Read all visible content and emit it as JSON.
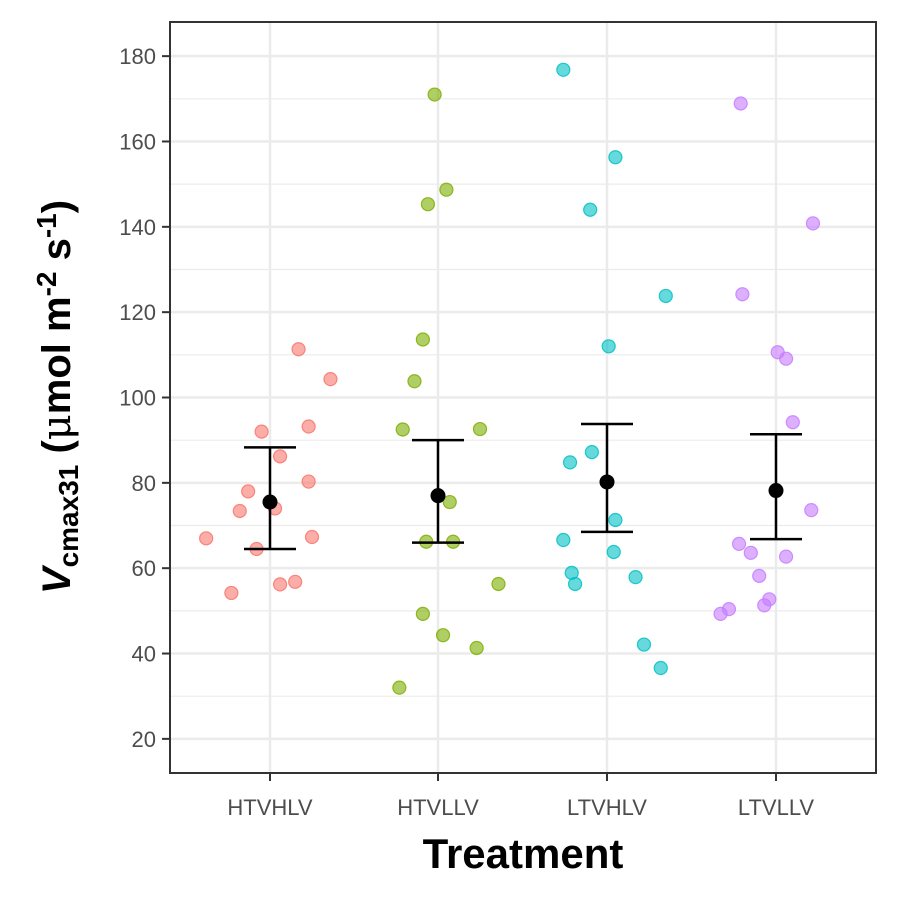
{
  "chart_data": {
    "type": "scatter",
    "xlabel": "Treatment",
    "ylabel": {
      "var": "V",
      "sub": "cmax31",
      "unit_open": " (",
      "unit_mu": "μ",
      "unit_mol": "mol m",
      "exp1": "-2",
      "unit_s": " s",
      "exp2": "-1",
      "unit_close": ")"
    },
    "categories": [
      "HTVHLV",
      "HTVLLV",
      "LTVHLV",
      "LTVLLV"
    ],
    "ylim": [
      12,
      188
    ],
    "yticks": [
      20,
      40,
      60,
      80,
      100,
      120,
      140,
      160,
      180
    ],
    "grid": true,
    "colors": {
      "HTVHLV": "#F8766D",
      "HTVLLV": "#7CAE00",
      "LTVHLV": "#00BFC4",
      "LTVLLV": "#C77CFF",
      "summary": "#000000"
    },
    "series": [
      {
        "category": "HTVHLV",
        "points": [
          {
            "x": -0.38,
            "y": 67
          },
          {
            "x": -0.23,
            "y": 54.2
          },
          {
            "x": -0.18,
            "y": 73.4
          },
          {
            "x": -0.13,
            "y": 78
          },
          {
            "x": -0.08,
            "y": 64.5
          },
          {
            "x": -0.05,
            "y": 92
          },
          {
            "x": 0.03,
            "y": 74
          },
          {
            "x": 0.06,
            "y": 86.2
          },
          {
            "x": 0.06,
            "y": 56.2
          },
          {
            "x": 0.15,
            "y": 56.8
          },
          {
            "x": 0.17,
            "y": 111.3
          },
          {
            "x": 0.23,
            "y": 93.2
          },
          {
            "x": 0.23,
            "y": 80.3
          },
          {
            "x": 0.25,
            "y": 67.3
          },
          {
            "x": 0.36,
            "y": 104.3
          }
        ],
        "mean": 75.5,
        "lower": 64.5,
        "upper": 88.3
      },
      {
        "category": "HTVLLV",
        "points": [
          {
            "x": -0.23,
            "y": 32
          },
          {
            "x": -0.21,
            "y": 92.5
          },
          {
            "x": -0.14,
            "y": 103.8
          },
          {
            "x": -0.09,
            "y": 113.6
          },
          {
            "x": -0.09,
            "y": 49.3
          },
          {
            "x": -0.07,
            "y": 66.2
          },
          {
            "x": -0.06,
            "y": 145.3
          },
          {
            "x": -0.02,
            "y": 171
          },
          {
            "x": 0.03,
            "y": 44.3
          },
          {
            "x": 0.05,
            "y": 148.7
          },
          {
            "x": 0.07,
            "y": 75.5
          },
          {
            "x": 0.09,
            "y": 66.2
          },
          {
            "x": 0.23,
            "y": 41.3
          },
          {
            "x": 0.25,
            "y": 92.6
          },
          {
            "x": 0.36,
            "y": 56.3
          }
        ],
        "mean": 77,
        "lower": 66,
        "upper": 90
      },
      {
        "category": "LTVHLV",
        "points": [
          {
            "x": -0.26,
            "y": 176.8
          },
          {
            "x": -0.26,
            "y": 66.6
          },
          {
            "x": -0.22,
            "y": 84.8
          },
          {
            "x": -0.21,
            "y": 58.9
          },
          {
            "x": -0.19,
            "y": 56.3
          },
          {
            "x": -0.1,
            "y": 144
          },
          {
            "x": -0.09,
            "y": 87.2
          },
          {
            "x": 0.01,
            "y": 112
          },
          {
            "x": 0.04,
            "y": 63.8
          },
          {
            "x": 0.05,
            "y": 71.3
          },
          {
            "x": 0.05,
            "y": 156.3
          },
          {
            "x": 0.17,
            "y": 57.9
          },
          {
            "x": 0.22,
            "y": 42.1
          },
          {
            "x": 0.32,
            "y": 36.6
          },
          {
            "x": 0.35,
            "y": 123.8
          }
        ],
        "mean": 80.2,
        "lower": 68.5,
        "upper": 93.8
      },
      {
        "category": "LTVLLV",
        "points": [
          {
            "x": -0.33,
            "y": 49.3
          },
          {
            "x": -0.28,
            "y": 50.4
          },
          {
            "x": -0.22,
            "y": 65.7
          },
          {
            "x": -0.15,
            "y": 63.6
          },
          {
            "x": -0.21,
            "y": 168.9
          },
          {
            "x": -0.2,
            "y": 124.2
          },
          {
            "x": -0.1,
            "y": 58.2
          },
          {
            "x": -0.07,
            "y": 51.3
          },
          {
            "x": -0.04,
            "y": 52.7
          },
          {
            "x": 0.01,
            "y": 110.6
          },
          {
            "x": 0.06,
            "y": 109.1
          },
          {
            "x": 0.06,
            "y": 62.7
          },
          {
            "x": 0.1,
            "y": 94.2
          },
          {
            "x": 0.21,
            "y": 73.6
          },
          {
            "x": 0.22,
            "y": 140.8
          }
        ],
        "mean": 78.2,
        "lower": 66.8,
        "upper": 91.4
      }
    ]
  }
}
